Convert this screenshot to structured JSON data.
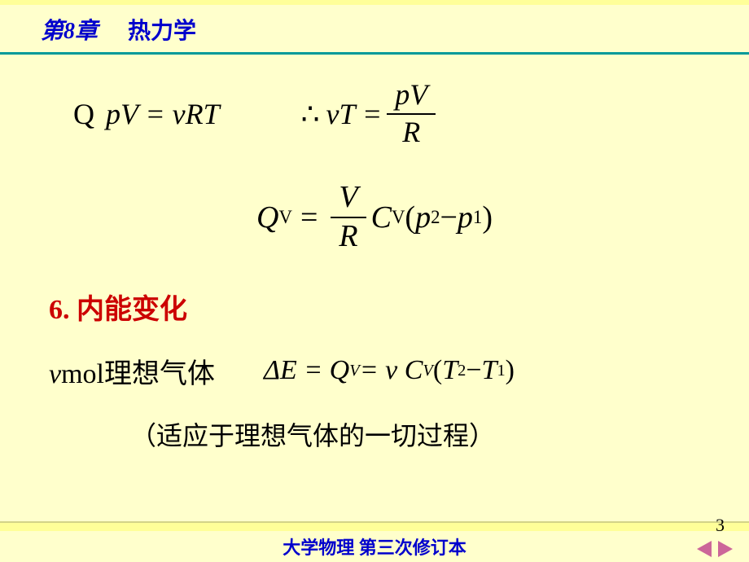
{
  "header": {
    "chapter_number": "第8章",
    "chapter_title": "热力学"
  },
  "equations": {
    "line1_left_Q": "Q",
    "line1_left_body": "pV = νRT",
    "line1_right_therefore": "∴",
    "line1_right_lhs": "νT =",
    "line1_right_frac_num": "pV",
    "line1_right_frac_den": "R",
    "line2_Q": "Q",
    "line2_Vsub": "V",
    "line2_eq": "=",
    "line2_frac_num": "V",
    "line2_frac_den": "R",
    "line2_C": "C",
    "line2_Csub": "V",
    "line2_open": "(",
    "line2_p2": "p",
    "line2_p2sub": "2",
    "line2_minus": " − ",
    "line2_p1": "p",
    "line2_p1sub": "1",
    "line2_close": ")",
    "line3_label_v": "v",
    "line3_label_rest": "mol理想气体",
    "line3_dE": "ΔE = Q",
    "line3_Qsub": "V",
    "line3_eq2": " = ν C",
    "line3_Csub": "V",
    "line3_open": "(",
    "line3_T2": "T",
    "line3_T2sub": "2",
    "line3_minus": " − ",
    "line3_T1": "T",
    "line3_T1sub": "1",
    "line3_close": ")"
  },
  "section": {
    "heading": "6. 内能变化"
  },
  "note": {
    "text": "（适应于理想气体的一切过程）"
  },
  "footer": {
    "text": "大学物理 第三次修订本",
    "page_number": "3"
  },
  "colors": {
    "background": "#ffffcc",
    "header_bar": "#ffff99",
    "divider": "#009999",
    "title_color": "#0000cc",
    "section_color": "#cc0000",
    "arrow_color": "#cc6699",
    "text_color": "#000000"
  }
}
